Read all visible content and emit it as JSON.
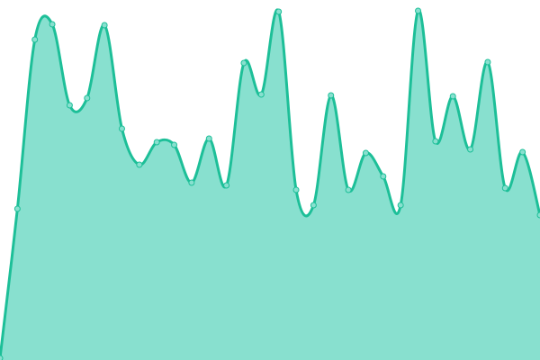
{
  "chart_data": {
    "type": "area",
    "title": "",
    "xlabel": "",
    "ylabel": "",
    "x": [
      0,
      1,
      2,
      3,
      4,
      5,
      6,
      7,
      8,
      9,
      10,
      11,
      12,
      13,
      14,
      15,
      16,
      17,
      18,
      19,
      20,
      21,
      22,
      23,
      24,
      25,
      26,
      27,
      28,
      29,
      30,
      31
    ],
    "values": [
      2,
      168,
      356,
      373,
      283,
      291,
      372,
      257,
      217,
      242,
      239,
      197,
      246,
      194,
      330,
      295,
      387,
      189,
      172,
      294,
      189,
      230,
      204,
      172,
      388,
      243,
      293,
      234,
      331,
      191,
      231,
      161
    ],
    "ylim": [
      0,
      400
    ],
    "grid": false,
    "axes_visible": false,
    "smooth": true,
    "markers": true,
    "colors": {
      "line": "#1dbf98",
      "fill": "#88e0cf",
      "marker_fill": "#88e0cf",
      "marker_stroke": "#1dbf98"
    }
  }
}
